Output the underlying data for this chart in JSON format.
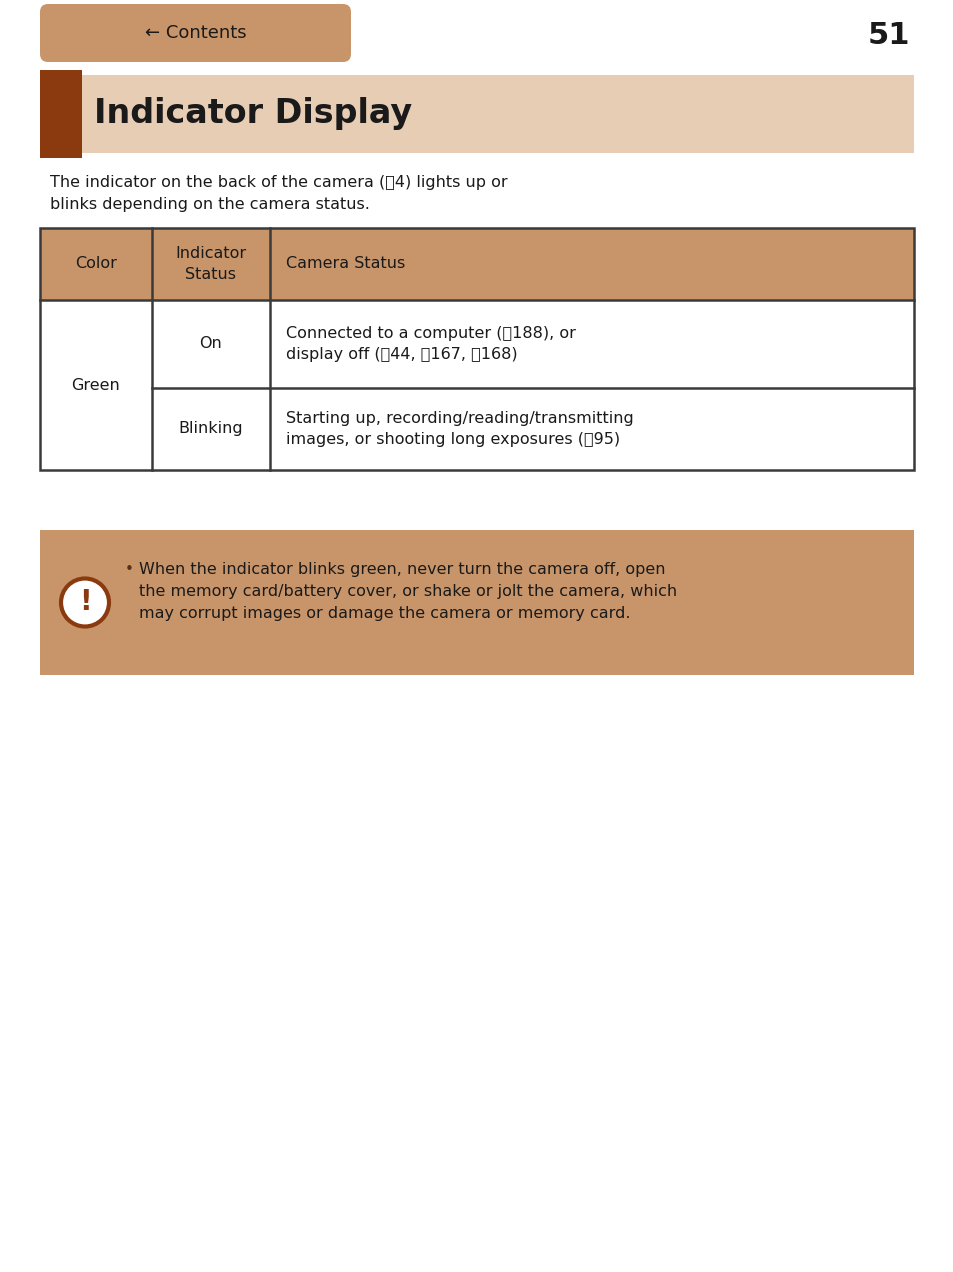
{
  "page_number": "51",
  "nav_button_text": "← Contents",
  "nav_button_color": "#c8956a",
  "nav_button_text_color": "#1a1a1a",
  "title": "Indicator Display",
  "title_bg_color": "#e8cdb5",
  "title_accent_color": "#8b3a0f",
  "body_bg_color": "#ffffff",
  "intro_text_line1": "The indicator on the back of the camera (📖4) lights up or",
  "intro_text_line2": "blinks depending on the camera status.",
  "table_header_bg": "#c8956a",
  "table_border_color": "#3a3a3a",
  "table_col1_header": "Color",
  "table_col2_header": "Indicator\nStatus",
  "table_col3_header": "Camera Status",
  "table_row1_color": "Green",
  "table_row1_status": "On",
  "table_row1_desc_line1": "Connected to a computer (📖188), or",
  "table_row1_desc_line2": "display off (📖44, 📖167, 📖168)",
  "table_row2_status": "Blinking",
  "table_row2_desc_line1": "Starting up, recording/reading/transmitting",
  "table_row2_desc_line2": "images, or shooting long exposures (📖95)",
  "warning_bg_color": "#c8956a",
  "warning_icon_border_color": "#8b3a0f",
  "warning_text_line1": "When the indicator blinks green, never turn the camera off, open",
  "warning_text_line2": "the memory card/battery cover, or shake or jolt the camera, which",
  "warning_text_line3": "may corrupt images or damage the camera or memory card.",
  "bullet_color": "#5a3010",
  "text_color": "#1a1a1a",
  "font_size_title": 24,
  "font_size_body": 11.5,
  "font_size_table_header": 11.5,
  "font_size_table_body": 11.5,
  "font_size_page": 22,
  "font_size_nav": 13
}
